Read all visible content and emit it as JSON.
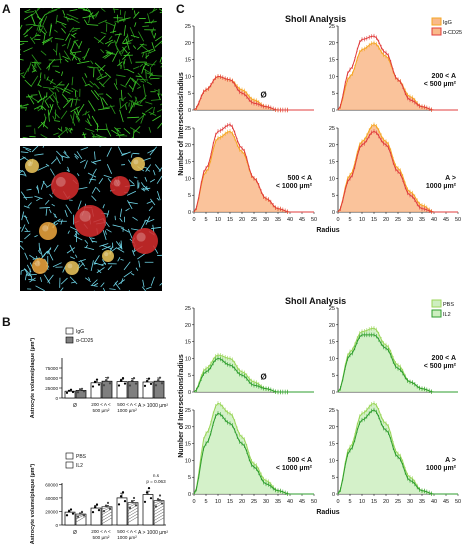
{
  "panels": {
    "a": "A",
    "b": "B",
    "c": "C"
  },
  "microscopy": {
    "top_caption": "",
    "bottom_caption": ""
  },
  "panel_b": {
    "top": {
      "ylabel": "Astrocyte volume/plaque (µm³)",
      "yticks": [
        "0",
        "25000",
        "50000",
        "75000"
      ],
      "legend": [
        "IgG",
        "α-CD25"
      ],
      "categories": [
        "Ø",
        "200 < A < 500 µm²",
        "500 < A < 1000 µm²",
        "A > 1000 µm²"
      ]
    },
    "bottom": {
      "ylabel": "Astrocyte volume/plaque (µm³)",
      "yticks": [
        "0",
        "20000",
        "40000",
        "60000"
      ],
      "legend": [
        "PBS",
        "IL2"
      ],
      "categories": [
        "Ø",
        "200 < A < 500 µm²",
        "500 < A < 1000 µm²",
        "A > 1000 µm²"
      ],
      "annotation_ns": "n.s",
      "annotation_p": "p = 0.063"
    }
  },
  "panel_c": {
    "top": {
      "title": "Sholl Analysis",
      "ylabel": "Number of Intersections/radius",
      "xlabel": "Radius",
      "legend": [
        "IgG",
        "α-CD25"
      ],
      "subplot_labels": [
        "Ø",
        "200 < A < 500 µm²",
        "500 < A < 1000 µm²",
        "A > 1000 µm²"
      ]
    },
    "bottom": {
      "title": "Sholl Analysis",
      "ylabel": "Number of Intersections/radius",
      "xlabel": "Radius",
      "legend": [
        "PBS",
        "IL2"
      ],
      "subplot_labels": [
        "Ø",
        "200 < A < 500 µm²",
        "500 < A < 1000 µm²",
        "A > 1000 µm²"
      ]
    },
    "xticks": [
      "0",
      "5",
      "10",
      "15",
      "20",
      "25",
      "30",
      "35",
      "40",
      "45",
      "50"
    ],
    "yticks": [
      "0",
      "5",
      "10",
      "15",
      "20",
      "25"
    ]
  },
  "colors": {
    "igg": "#f5a623",
    "acd25": "#e03c3c",
    "igg_fill": "#f9b98a",
    "pbs": "#9bd65a",
    "il2": "#2e9e2e",
    "pbs_fill": "#cdeec0",
    "bar_open": "#ffffff",
    "bar_grey": "#7f7f7f"
  },
  "chart_data": [
    {
      "type": "bar",
      "panel": "B-top",
      "categories": [
        "Ø",
        "200 < A < 500 µm²",
        "500 < A < 1000 µm²",
        "A > 1000 µm²"
      ],
      "series": [
        {
          "name": "IgG",
          "values": [
            17000,
            38000,
            41000,
            40000
          ],
          "sem": [
            2000,
            4000,
            6000,
            8000
          ]
        },
        {
          "name": "α-CD25",
          "values": [
            19000,
            42000,
            41000,
            42000
          ],
          "sem": [
            4000,
            9000,
            8000,
            8000
          ]
        }
      ],
      "ylim": [
        0,
        100000
      ]
    },
    {
      "type": "bar",
      "panel": "B-bottom",
      "categories": [
        "Ø",
        "200 < A < 500 µm²",
        "500 < A < 1000 µm²",
        "A > 1000 µm²"
      ],
      "series": [
        {
          "name": "PBS",
          "values": [
            19000,
            25000,
            40000,
            45000
          ],
          "sem": [
            3000,
            4000,
            7000,
            5000
          ]
        },
        {
          "name": "IL2",
          "values": [
            16000,
            27000,
            33000,
            36000
          ],
          "sem": [
            2000,
            2000,
            3000,
            2000
          ]
        }
      ],
      "ylim": [
        0,
        62000
      ]
    },
    {
      "type": "line",
      "panel": "C-top",
      "x": [
        0,
        5,
        10,
        15,
        20,
        25,
        30,
        35,
        40,
        45,
        50
      ],
      "subplots": [
        {
          "label": "Ø",
          "series": [
            {
              "name": "IgG",
              "values": [
                0,
                6,
                10,
                9,
                6,
                3,
                1,
                0,
                0,
                0,
                0
              ]
            },
            {
              "name": "α-CD25",
              "values": [
                0,
                6,
                10,
                9,
                5,
                2,
                1,
                0,
                0,
                0,
                0
              ]
            }
          ]
        },
        {
          "label": "200 < A < 500 µm²",
          "series": [
            {
              "name": "IgG",
              "values": [
                0,
                10,
                18,
                20,
                16,
                9,
                4,
                1,
                0,
                0,
                0
              ]
            },
            {
              "name": "α-CD25",
              "values": [
                0,
                12,
                21,
                22,
                17,
                9,
                3,
                1,
                0,
                0,
                0
              ]
            }
          ]
        },
        {
          "label": "500 < A < 1000 µm²",
          "series": [
            {
              "name": "IgG",
              "values": [
                0,
                12,
                22,
                24,
                18,
                10,
                4,
                1,
                0,
                0,
                0
              ]
            },
            {
              "name": "α-CD25",
              "values": [
                0,
                13,
                24,
                26,
                19,
                10,
                4,
                1,
                0,
                0,
                0
              ]
            }
          ]
        },
        {
          "label": "A > 1000 µm²",
          "series": [
            {
              "name": "IgG",
              "values": [
                0,
                11,
                21,
                26,
                21,
                13,
                6,
                2,
                0,
                0,
                0
              ]
            },
            {
              "name": "α-CD25",
              "values": [
                0,
                10,
                20,
                24,
                20,
                12,
                5,
                1,
                0,
                0,
                0
              ]
            }
          ]
        }
      ],
      "ylim": [
        0,
        25
      ]
    },
    {
      "type": "line",
      "panel": "C-bottom",
      "x": [
        0,
        5,
        10,
        15,
        20,
        25,
        30,
        35,
        40,
        45,
        50
      ],
      "subplots": [
        {
          "label": "Ø",
          "series": [
            {
              "name": "PBS",
              "values": [
                0,
                7,
                11,
                10,
                6,
                3,
                1,
                0,
                0,
                0,
                0
              ]
            },
            {
              "name": "IL2",
              "values": [
                0,
                6,
                10,
                8,
                5,
                2,
                1,
                0,
                0,
                0,
                0
              ]
            }
          ]
        },
        {
          "label": "200 < A < 500 µm²",
          "series": [
            {
              "name": "PBS",
              "values": [
                0,
                12,
                18,
                19,
                14,
                8,
                3,
                1,
                0,
                0,
                0
              ]
            },
            {
              "name": "IL2",
              "values": [
                0,
                11,
                17,
                17,
                13,
                7,
                3,
                1,
                0,
                0,
                0
              ]
            }
          ]
        },
        {
          "label": "500 < A < 1000 µm²",
          "series": [
            {
              "name": "PBS",
              "values": [
                0,
                18,
                27,
                24,
                17,
                9,
                4,
                1,
                0,
                0,
                0
              ]
            },
            {
              "name": "IL2",
              "values": [
                0,
                15,
                24,
                21,
                15,
                8,
                3,
                1,
                0,
                0,
                0
              ]
            }
          ]
        },
        {
          "label": "A > 1000 µm²",
          "series": [
            {
              "name": "PBS",
              "values": [
                0,
                14,
                24,
                27,
                21,
                12,
                5,
                1,
                0,
                0,
                0
              ]
            },
            {
              "name": "IL2",
              "values": [
                0,
                13,
                22,
                25,
                19,
                11,
                4,
                1,
                0,
                0,
                0
              ]
            }
          ]
        }
      ],
      "ylim": [
        0,
        25
      ]
    }
  ]
}
